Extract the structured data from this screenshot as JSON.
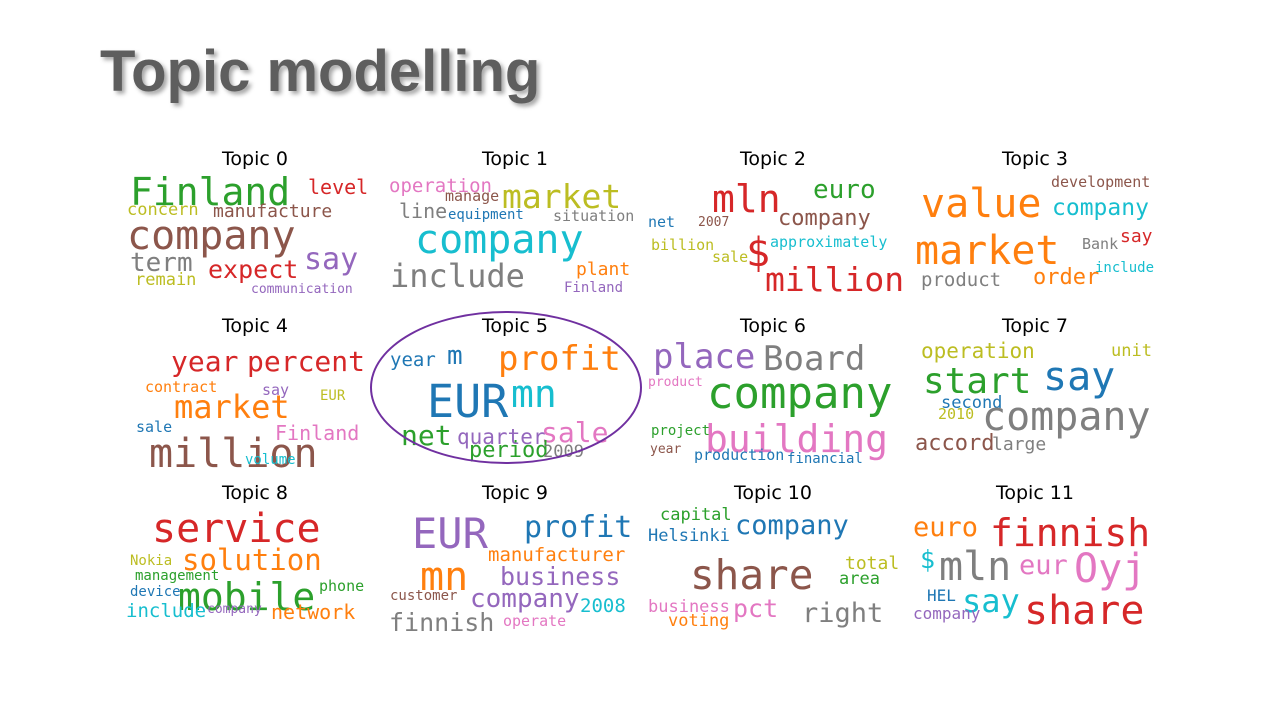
{
  "slide": {
    "title": "Topic modelling"
  },
  "colors": {
    "blue": "#1f77b4",
    "orange": "#ff7f0e",
    "green": "#2ca02c",
    "red": "#d62728",
    "purple": "#9467bd",
    "brown": "#8c564b",
    "pink": "#e377c2",
    "gray": "#7f7f7f",
    "olive": "#bcbd22",
    "cyan": "#17becf",
    "highlight": "#7030a0"
  },
  "topics": [
    {
      "title": "Topic 0",
      "words": [
        {
          "text": "Finland",
          "color": "green"
        },
        {
          "text": "level",
          "color": "red"
        },
        {
          "text": "concern",
          "color": "olive"
        },
        {
          "text": "manufacture",
          "color": "brown"
        },
        {
          "text": "company",
          "color": "brown"
        },
        {
          "text": "term",
          "color": "gray"
        },
        {
          "text": "say",
          "color": "purple"
        },
        {
          "text": "expect",
          "color": "red"
        },
        {
          "text": "remain",
          "color": "olive"
        },
        {
          "text": "communication",
          "color": "purple"
        }
      ]
    },
    {
      "title": "Topic 1",
      "words": [
        {
          "text": "operation",
          "color": "pink"
        },
        {
          "text": "manage",
          "color": "brown"
        },
        {
          "text": "market",
          "color": "olive"
        },
        {
          "text": "line",
          "color": "gray"
        },
        {
          "text": "equipment",
          "color": "blue"
        },
        {
          "text": "situation",
          "color": "gray"
        },
        {
          "text": "company",
          "color": "cyan"
        },
        {
          "text": "include",
          "color": "gray"
        },
        {
          "text": "plant",
          "color": "orange"
        },
        {
          "text": "Finland",
          "color": "purple"
        }
      ]
    },
    {
      "title": "Topic 2",
      "words": [
        {
          "text": "mln",
          "color": "red"
        },
        {
          "text": "euro",
          "color": "green"
        },
        {
          "text": "net",
          "color": "blue"
        },
        {
          "text": "2007",
          "color": "brown"
        },
        {
          "text": "company",
          "color": "brown"
        },
        {
          "text": "billion",
          "color": "olive"
        },
        {
          "text": "$",
          "color": "red"
        },
        {
          "text": "approximately",
          "color": "cyan"
        },
        {
          "text": "sale",
          "color": "olive"
        },
        {
          "text": "million",
          "color": "red"
        }
      ]
    },
    {
      "title": "Topic 3",
      "words": [
        {
          "text": "development",
          "color": "brown"
        },
        {
          "text": "value",
          "color": "orange"
        },
        {
          "text": "company",
          "color": "cyan"
        },
        {
          "text": "market",
          "color": "orange"
        },
        {
          "text": "say",
          "color": "red"
        },
        {
          "text": "Bank",
          "color": "gray"
        },
        {
          "text": "include",
          "color": "cyan"
        },
        {
          "text": "product",
          "color": "gray"
        },
        {
          "text": "order",
          "color": "orange"
        }
      ]
    },
    {
      "title": "Topic 4",
      "words": [
        {
          "text": "year",
          "color": "red"
        },
        {
          "text": "percent",
          "color": "red"
        },
        {
          "text": "contract",
          "color": "orange"
        },
        {
          "text": "say",
          "color": "purple"
        },
        {
          "text": "EUR",
          "color": "olive"
        },
        {
          "text": "market",
          "color": "orange"
        },
        {
          "text": "sale",
          "color": "blue"
        },
        {
          "text": "Finland",
          "color": "pink"
        },
        {
          "text": "million",
          "color": "brown"
        },
        {
          "text": "volume",
          "color": "cyan"
        }
      ]
    },
    {
      "title": "Topic 5",
      "words": [
        {
          "text": "year",
          "color": "blue"
        },
        {
          "text": "m",
          "color": "blue"
        },
        {
          "text": "profit",
          "color": "orange"
        },
        {
          "text": "EUR",
          "color": "blue"
        },
        {
          "text": "mn",
          "color": "cyan"
        },
        {
          "text": "net",
          "color": "green"
        },
        {
          "text": "quarter",
          "color": "purple"
        },
        {
          "text": "sale",
          "color": "pink"
        },
        {
          "text": "period",
          "color": "green"
        },
        {
          "text": "2009",
          "color": "gray"
        }
      ]
    },
    {
      "title": "Topic 6",
      "words": [
        {
          "text": "place",
          "color": "purple"
        },
        {
          "text": "Board",
          "color": "gray"
        },
        {
          "text": "product",
          "color": "pink"
        },
        {
          "text": "company",
          "color": "green"
        },
        {
          "text": "project",
          "color": "green"
        },
        {
          "text": "building",
          "color": "pink"
        },
        {
          "text": "year",
          "color": "brown"
        },
        {
          "text": "production",
          "color": "blue"
        },
        {
          "text": "financial",
          "color": "blue"
        }
      ]
    },
    {
      "title": "Topic 7",
      "words": [
        {
          "text": "operation",
          "color": "olive"
        },
        {
          "text": "unit",
          "color": "olive"
        },
        {
          "text": "start",
          "color": "green"
        },
        {
          "text": "say",
          "color": "blue"
        },
        {
          "text": "second",
          "color": "blue"
        },
        {
          "text": "2010",
          "color": "olive"
        },
        {
          "text": "company",
          "color": "gray"
        },
        {
          "text": "accord",
          "color": "brown"
        },
        {
          "text": "large",
          "color": "gray"
        }
      ]
    },
    {
      "title": "Topic 8",
      "words": [
        {
          "text": "service",
          "color": "red"
        },
        {
          "text": "Nokia",
          "color": "olive"
        },
        {
          "text": "solution",
          "color": "orange"
        },
        {
          "text": "management",
          "color": "green"
        },
        {
          "text": "device",
          "color": "blue"
        },
        {
          "text": "mobile",
          "color": "green"
        },
        {
          "text": "phone",
          "color": "green"
        },
        {
          "text": "include",
          "color": "cyan"
        },
        {
          "text": "company",
          "color": "purple"
        },
        {
          "text": "network",
          "color": "orange"
        }
      ]
    },
    {
      "title": "Topic 9",
      "words": [
        {
          "text": "EUR",
          "color": "purple"
        },
        {
          "text": "profit",
          "color": "blue"
        },
        {
          "text": "manufacturer",
          "color": "orange"
        },
        {
          "text": "mn",
          "color": "orange"
        },
        {
          "text": "business",
          "color": "purple"
        },
        {
          "text": "customer",
          "color": "brown"
        },
        {
          "text": "company",
          "color": "purple"
        },
        {
          "text": "2008",
          "color": "cyan"
        },
        {
          "text": "finnish",
          "color": "gray"
        },
        {
          "text": "operate",
          "color": "pink"
        }
      ]
    },
    {
      "title": "Topic 10",
      "words": [
        {
          "text": "capital",
          "color": "green"
        },
        {
          "text": "company",
          "color": "blue"
        },
        {
          "text": "Helsinki",
          "color": "blue"
        },
        {
          "text": "share",
          "color": "brown"
        },
        {
          "text": "total",
          "color": "olive"
        },
        {
          "text": "area",
          "color": "green"
        },
        {
          "text": "business",
          "color": "pink"
        },
        {
          "text": "pct",
          "color": "pink"
        },
        {
          "text": "right",
          "color": "gray"
        },
        {
          "text": "voting",
          "color": "orange"
        }
      ]
    },
    {
      "title": "Topic 11",
      "words": [
        {
          "text": "euro",
          "color": "orange"
        },
        {
          "text": "finnish",
          "color": "red"
        },
        {
          "text": "$",
          "color": "cyan"
        },
        {
          "text": "mln",
          "color": "gray"
        },
        {
          "text": "eur",
          "color": "pink"
        },
        {
          "text": "Oyj",
          "color": "pink"
        },
        {
          "text": "HEL",
          "color": "blue"
        },
        {
          "text": "say",
          "color": "cyan"
        },
        {
          "text": "company",
          "color": "purple"
        },
        {
          "text": "share",
          "color": "red"
        }
      ]
    }
  ]
}
